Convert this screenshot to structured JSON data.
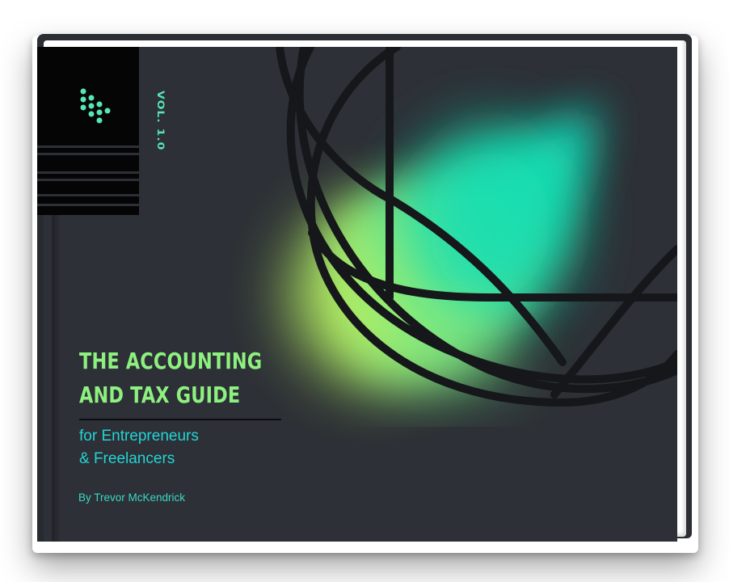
{
  "cover": {
    "volume": "VOL. 1.0",
    "title_line1": "THE ACCOUNTING",
    "title_line2": "AND TAX GUIDE",
    "subtitle_line1": "for Entrepreneurs",
    "subtitle_line2": "& Freelancers",
    "author": "By Trevor McKendrick"
  },
  "colors": {
    "background": "#2d3036",
    "title": "#8df07f",
    "subtitle": "#22d5d6",
    "accent_glow": "#19e0b0",
    "logo_dots": "#56e6b4"
  },
  "icons": [
    "logo-dots-icon",
    "globe-lines-graphic"
  ]
}
